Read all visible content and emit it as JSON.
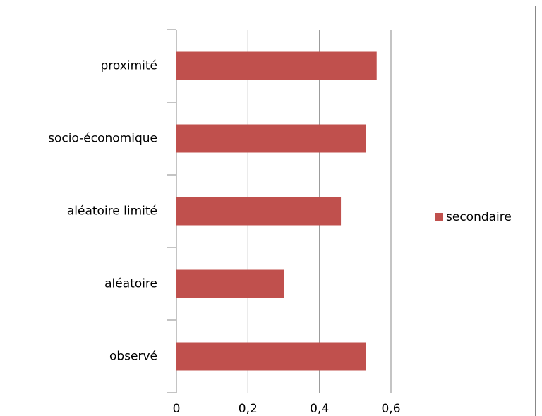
{
  "chart_data": {
    "type": "barh",
    "categories": [
      "observé",
      "aléatoire",
      "aléatoire limité",
      "socio-économique",
      "proximité"
    ],
    "series": [
      {
        "name": "secondaire",
        "color": "#c0504d",
        "values": [
          0.53,
          0.3,
          0.46,
          0.53,
          0.56
        ]
      }
    ],
    "xlim": [
      0,
      0.6
    ],
    "xticks": [
      0,
      {
        "value": 0.2,
        "label": "0,2"
      },
      {
        "value": 0.4,
        "label": "0,4"
      },
      {
        "value": 0.6,
        "label": "0,6"
      }
    ],
    "grid": true,
    "legend": "right"
  }
}
